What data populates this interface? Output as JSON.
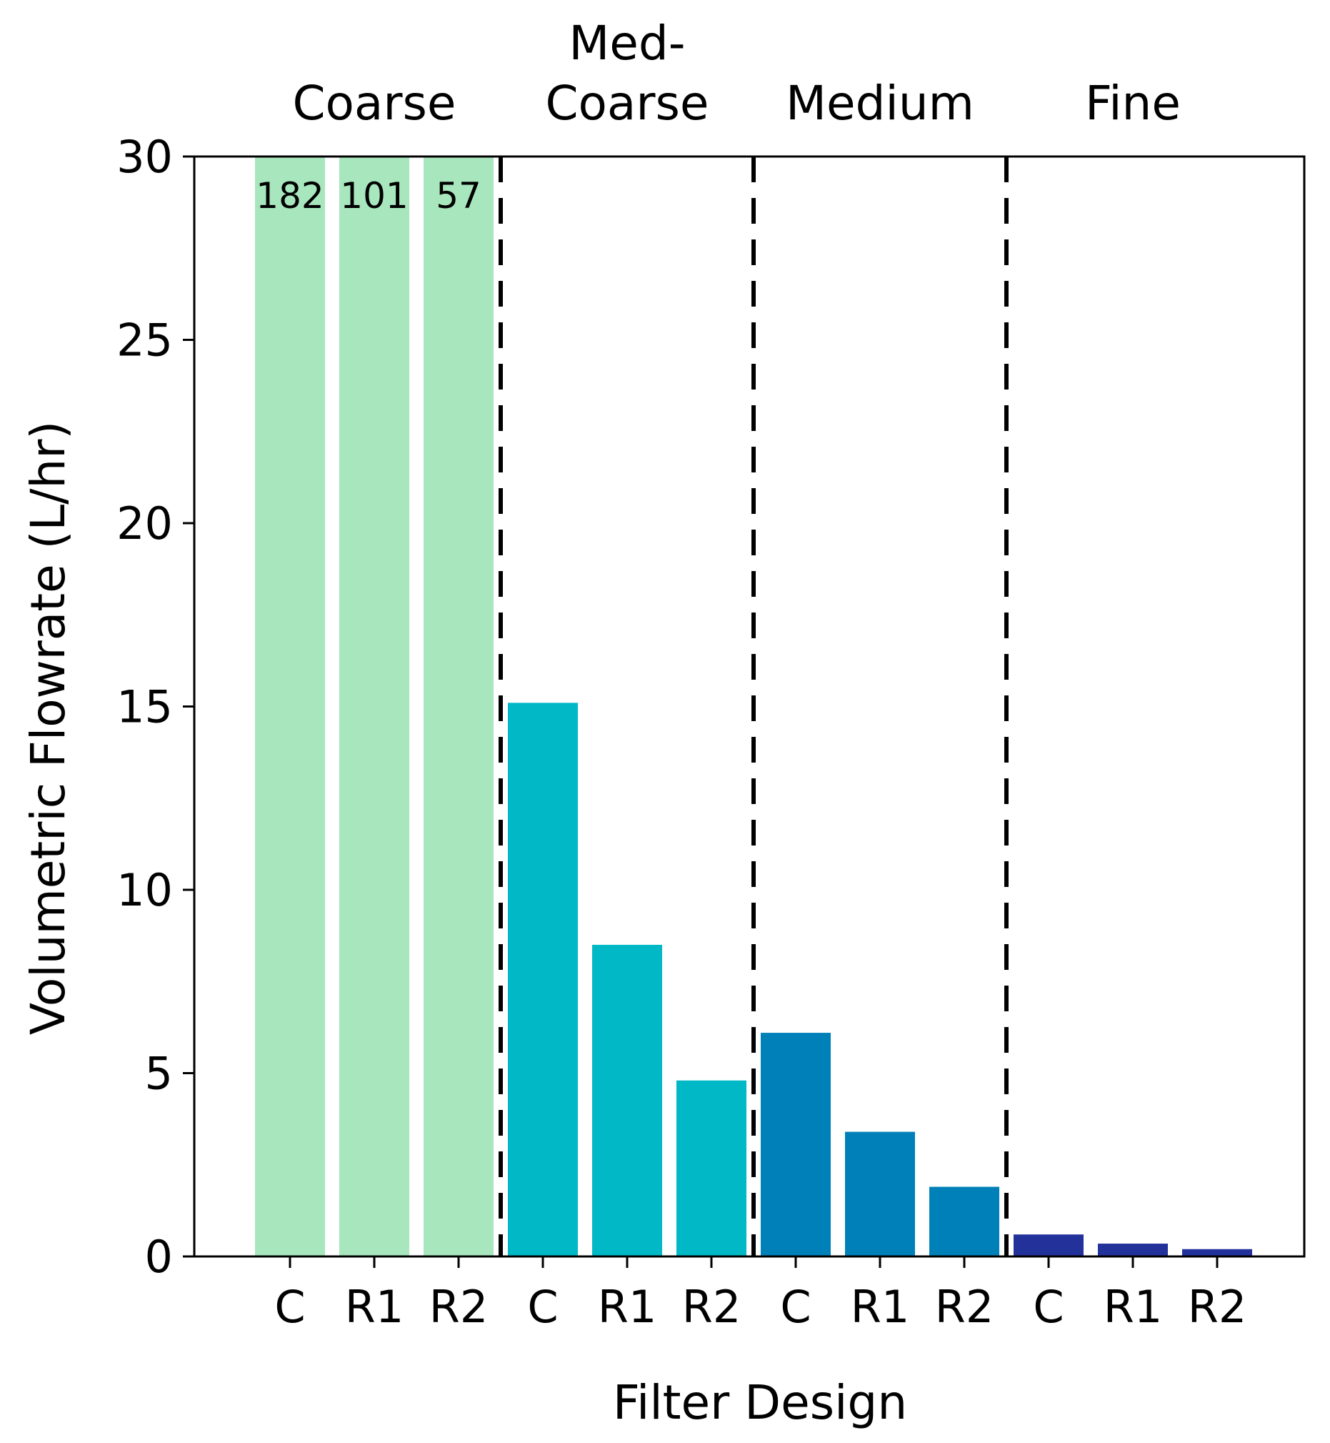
{
  "chart_data": {
    "type": "bar",
    "title": "",
    "xlabel": "Filter Design",
    "ylabel": "Volumetric Flowrate (L/hr)",
    "ylim": [
      0,
      30
    ],
    "yticks": [
      0,
      5,
      10,
      15,
      20,
      25,
      30
    ],
    "grid": false,
    "legend": "none",
    "group_separators": "dashed",
    "groups": [
      {
        "name_lines": [
          "Coarse"
        ],
        "color": "#a8e6bd",
        "categories": [
          "C",
          "R1",
          "R2"
        ],
        "values": [
          182,
          101,
          57
        ],
        "value_labels": [
          "182",
          "101",
          "57"
        ]
      },
      {
        "name_lines": [
          "Med-",
          "Coarse"
        ],
        "color": "#00b8c6",
        "categories": [
          "C",
          "R1",
          "R2"
        ],
        "values": [
          15.1,
          8.5,
          4.8
        ]
      },
      {
        "name_lines": [
          "Medium"
        ],
        "color": "#0080b8",
        "categories": [
          "C",
          "R1",
          "R2"
        ],
        "values": [
          6.1,
          3.4,
          1.9
        ]
      },
      {
        "name_lines": [
          "Fine"
        ],
        "color": "#23319b",
        "categories": [
          "C",
          "R1",
          "R2"
        ],
        "values": [
          0.6,
          0.35,
          0.2
        ]
      }
    ]
  }
}
